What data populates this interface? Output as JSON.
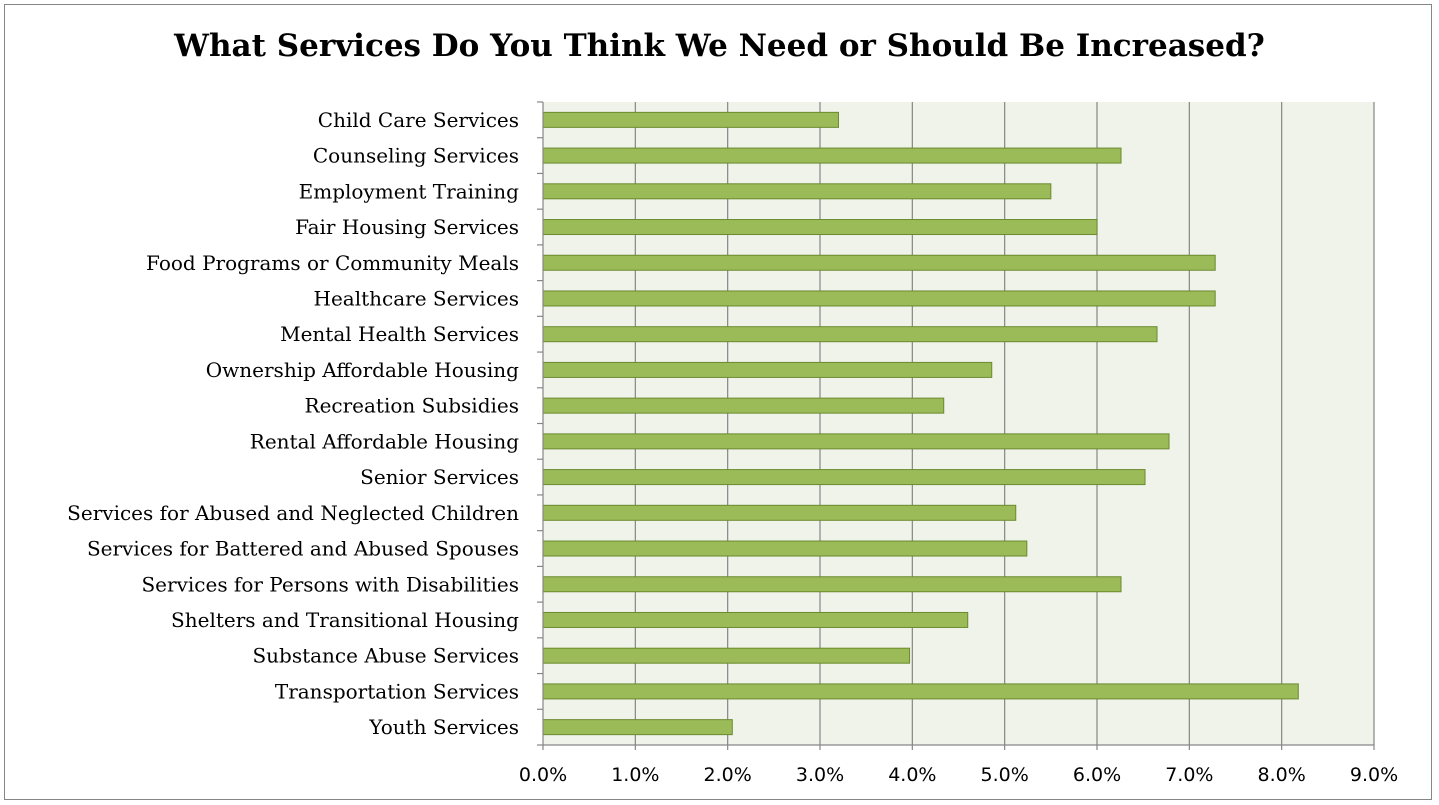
{
  "chart_data": {
    "type": "bar",
    "orientation": "horizontal",
    "title": "What Services Do You Think We Need or Should Be Increased?",
    "xlabel": "",
    "ylabel": "",
    "xlim": [
      0,
      9
    ],
    "x_ticks": [
      "0.0%",
      "1.0%",
      "2.0%",
      "3.0%",
      "4.0%",
      "5.0%",
      "6.0%",
      "7.0%",
      "8.0%",
      "9.0%"
    ],
    "grid": true,
    "legend": "none",
    "categories": [
      "Child Care Services",
      "Counseling Services",
      "Employment Training",
      "Fair Housing Services",
      "Food Programs or Community Meals",
      "Healthcare Services",
      "Mental Health Services",
      "Ownership Affordable Housing",
      "Recreation Subsidies",
      "Rental Affordable Housing",
      "Senior Services",
      "Services for Abused and Neglected Children",
      "Services for Battered and Abused Spouses",
      "Services for Persons with Disabilities",
      "Shelters and Transitional Housing",
      "Substance Abuse Services",
      "Transportation Services",
      "Youth Services"
    ],
    "values": [
      3.2,
      6.26,
      5.5,
      6.0,
      7.28,
      7.28,
      6.65,
      4.86,
      4.34,
      6.78,
      6.52,
      5.12,
      5.24,
      6.26,
      4.6,
      3.97,
      8.18,
      2.05
    ],
    "colors": {
      "bar_fill": "#9bbb59",
      "bar_stroke": "#6b8a2e",
      "plot_background": "#eff3ea",
      "grid": "#868686"
    }
  }
}
